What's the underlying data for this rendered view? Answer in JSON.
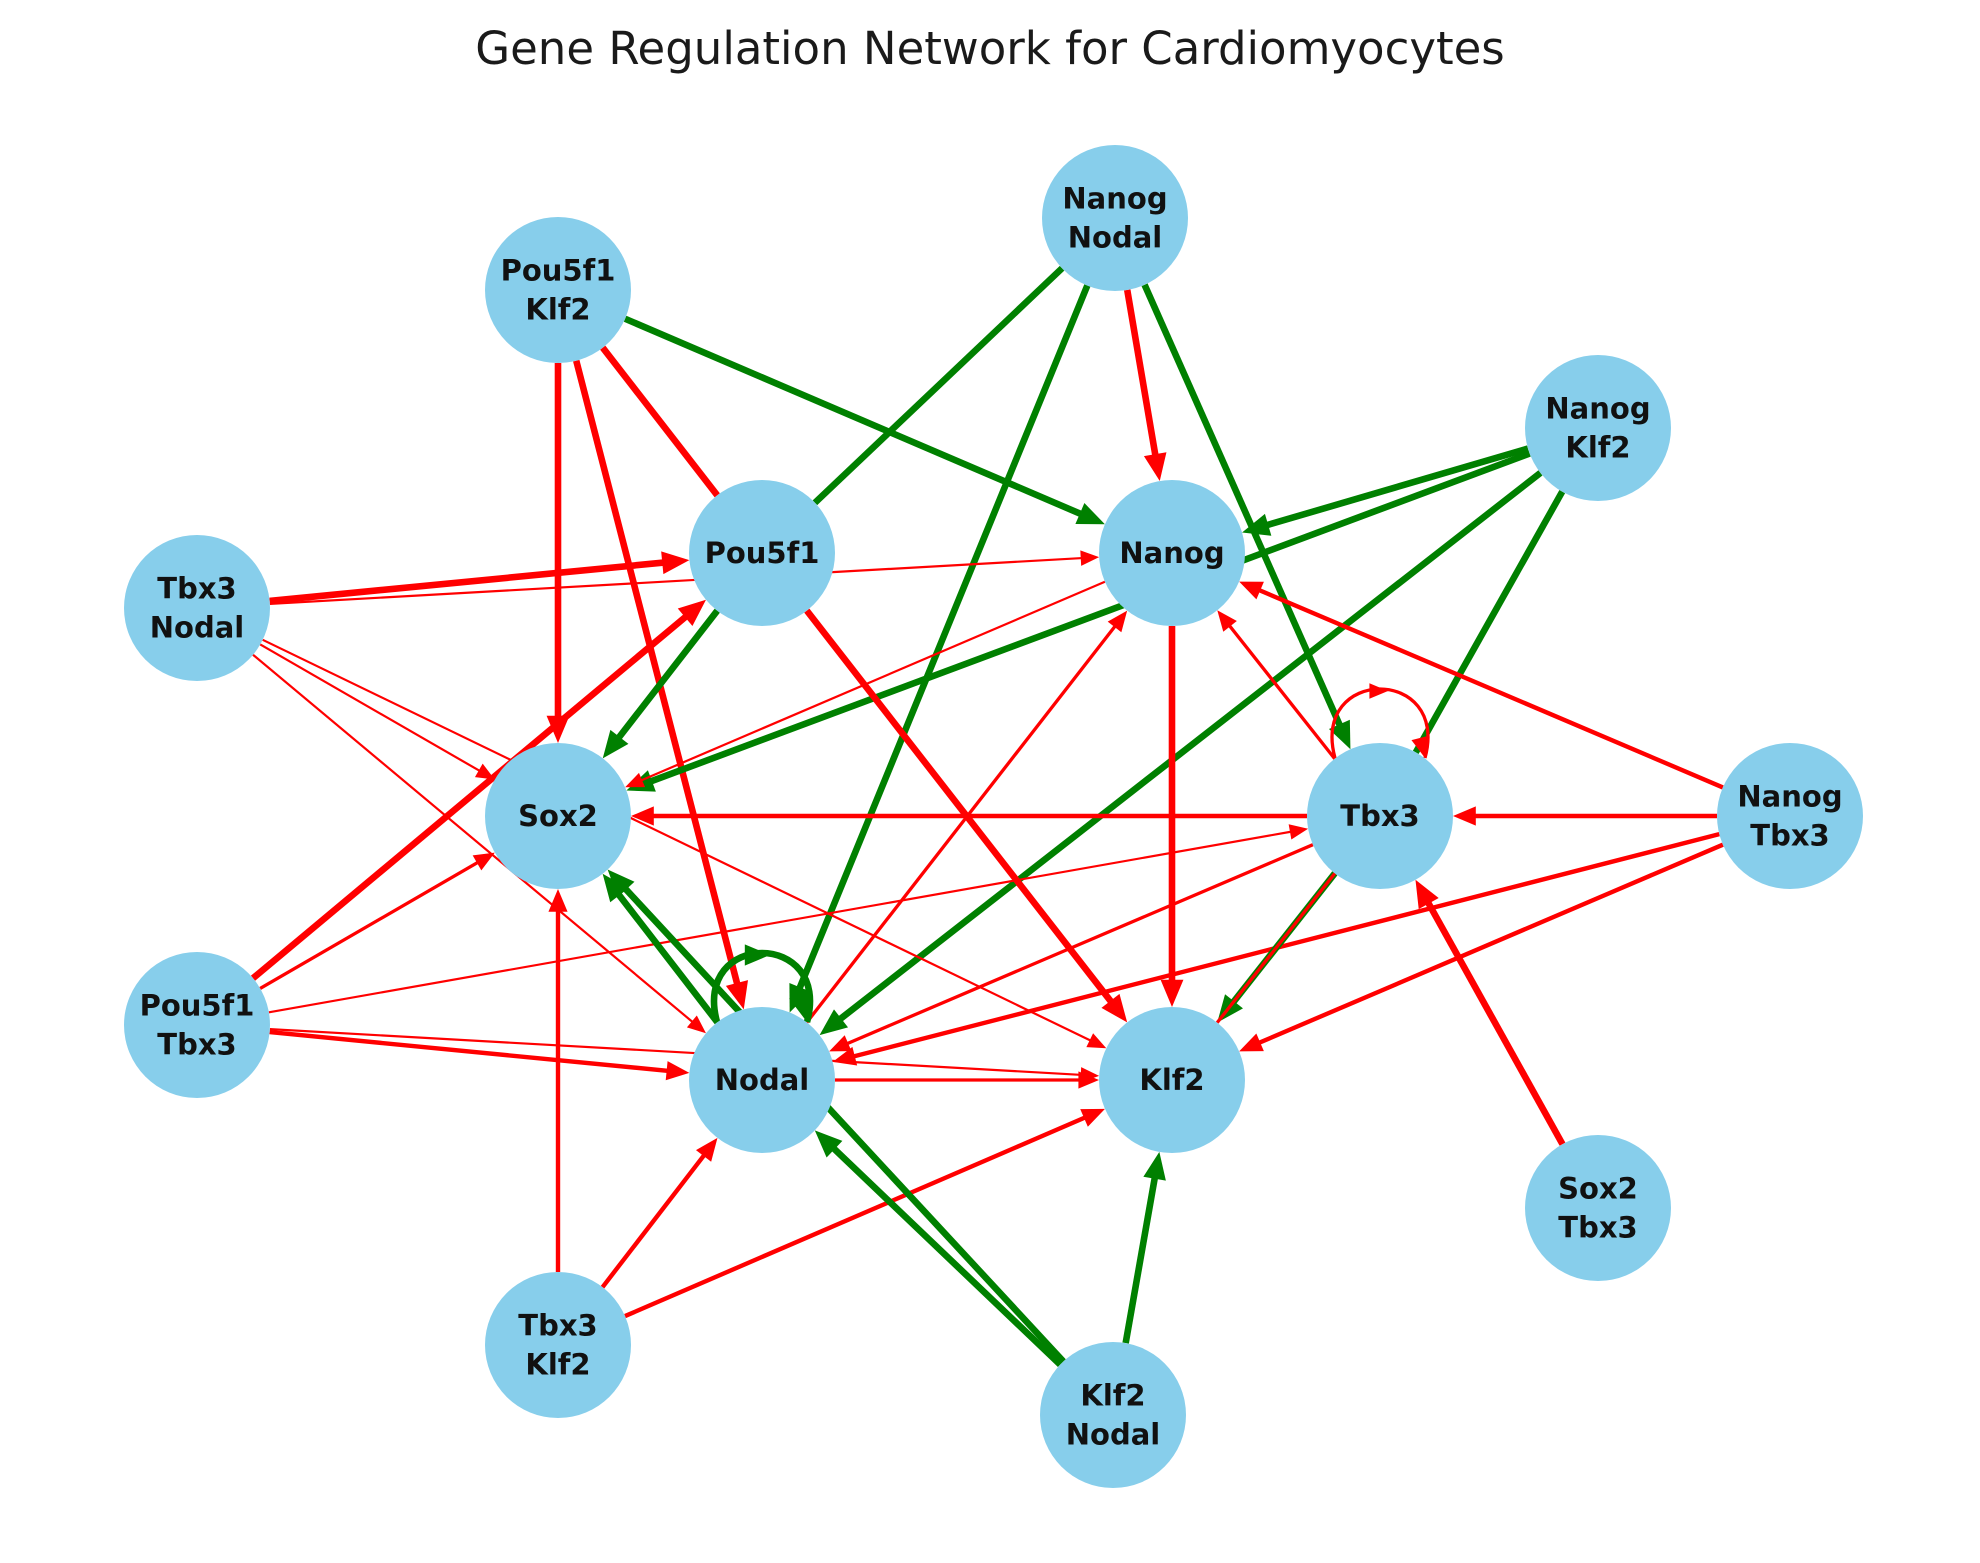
{
  "title": "Gene Regulation Network for Cardiomyocytes",
  "colors": {
    "node_fill": "#87ceeb",
    "activation": "#008000",
    "repression": "#ff0000"
  },
  "nodes": [
    {
      "id": "Pou5f1",
      "label": "Pou5f1"
    },
    {
      "id": "Nanog",
      "label": "Nanog"
    },
    {
      "id": "Sox2",
      "label": "Sox2"
    },
    {
      "id": "Tbx3",
      "label": "Tbx3"
    },
    {
      "id": "Nodal",
      "label": "Nodal"
    },
    {
      "id": "Klf2",
      "label": "Klf2"
    },
    {
      "id": "NanogNodal",
      "label": "Nanog\nNodal"
    },
    {
      "id": "Pou5f1Klf2",
      "label": "Pou5f1\nKlf2"
    },
    {
      "id": "NanogKlf2",
      "label": "Nanog\nKlf2"
    },
    {
      "id": "Tbx3Nodal",
      "label": "Tbx3\nNodal"
    },
    {
      "id": "NanogTbx3",
      "label": "Nanog\nTbx3"
    },
    {
      "id": "Pou5f1Tbx3",
      "label": "Pou5f1\nTbx3"
    },
    {
      "id": "Sox2Tbx3",
      "label": "Sox2\nTbx3"
    },
    {
      "id": "Tbx3Klf2",
      "label": "Tbx3\nKlf2"
    },
    {
      "id": "Klf2Nodal",
      "label": "Klf2\nNodal"
    }
  ],
  "edges": [
    {
      "from": "Pou5f1Klf2",
      "to": "Sox2",
      "type": "repression",
      "weight": 3
    },
    {
      "from": "Pou5f1Klf2",
      "to": "Nodal",
      "type": "repression",
      "weight": 3
    },
    {
      "from": "Pou5f1Klf2",
      "to": "Pou5f1",
      "type": "repression",
      "weight": 3,
      "arrow": false
    },
    {
      "from": "Pou5f1Klf2",
      "to": "Nanog",
      "type": "activation",
      "weight": 3
    },
    {
      "from": "NanogNodal",
      "to": "Pou5f1",
      "type": "activation",
      "weight": 3,
      "arrow": false
    },
    {
      "from": "NanogNodal",
      "to": "Nodal",
      "type": "activation",
      "weight": 3
    },
    {
      "from": "NanogNodal",
      "to": "Nanog",
      "type": "repression",
      "weight": 3
    },
    {
      "from": "NanogNodal",
      "to": "Tbx3",
      "type": "activation",
      "weight": 3
    },
    {
      "from": "NanogKlf2",
      "to": "Nanog",
      "type": "activation",
      "weight": 3
    },
    {
      "from": "NanogKlf2",
      "to": "Sox2",
      "type": "activation",
      "weight": 3
    },
    {
      "from": "NanogKlf2",
      "to": "Nodal",
      "type": "activation",
      "weight": 3
    },
    {
      "from": "NanogKlf2",
      "to": "Tbx3",
      "type": "activation",
      "weight": 3,
      "arrow": false
    },
    {
      "from": "Tbx3Nodal",
      "to": "Pou5f1",
      "type": "repression",
      "weight": 3
    },
    {
      "from": "Tbx3Nodal",
      "to": "Nanog",
      "type": "repression",
      "weight": 1
    },
    {
      "from": "Tbx3Nodal",
      "to": "Sox2",
      "type": "repression",
      "weight": 1
    },
    {
      "from": "Tbx3Nodal",
      "to": "Nodal",
      "type": "repression",
      "weight": 1
    },
    {
      "from": "Tbx3Nodal",
      "to": "Klf2",
      "type": "repression",
      "weight": 1
    },
    {
      "from": "Pou5f1",
      "to": "Sox2",
      "type": "activation",
      "weight": 3
    },
    {
      "from": "Pou5f1",
      "to": "Klf2",
      "type": "repression",
      "weight": 3
    },
    {
      "from": "Nanog",
      "to": "Sox2",
      "type": "repression",
      "weight": 1
    },
    {
      "from": "Nanog",
      "to": "Klf2",
      "type": "repression",
      "weight": 3
    },
    {
      "from": "NanogTbx3",
      "to": "Tbx3",
      "type": "repression",
      "weight": 2
    },
    {
      "from": "NanogTbx3",
      "to": "Nanog",
      "type": "repression",
      "weight": 2
    },
    {
      "from": "NanogTbx3",
      "to": "Nodal",
      "type": "repression",
      "weight": 2
    },
    {
      "from": "NanogTbx3",
      "to": "Klf2",
      "type": "repression",
      "weight": 2
    },
    {
      "from": "Tbx3",
      "to": "Sox2",
      "type": "repression",
      "weight": 2
    },
    {
      "from": "Tbx3",
      "to": "Nanog",
      "type": "repression",
      "weight": 1.5
    },
    {
      "from": "Tbx3",
      "to": "Nodal",
      "type": "repression",
      "weight": 1.5
    },
    {
      "from": "Tbx3",
      "to": "Klf2",
      "type": "activation",
      "weight": 3
    },
    {
      "from": "Tbx3",
      "to": "Klf2",
      "type": "repression",
      "weight": 1.5,
      "arrow": false
    },
    {
      "from": "Pou5f1Tbx3",
      "to": "Pou5f1",
      "type": "repression",
      "weight": 3
    },
    {
      "from": "Pou5f1Tbx3",
      "to": "Sox2",
      "type": "repression",
      "weight": 1.5
    },
    {
      "from": "Pou5f1Tbx3",
      "to": "Tbx3",
      "type": "repression",
      "weight": 1
    },
    {
      "from": "Pou5f1Tbx3",
      "to": "Nodal",
      "type": "repression",
      "weight": 2
    },
    {
      "from": "Pou5f1Tbx3",
      "to": "Klf2",
      "type": "repression",
      "weight": 1
    },
    {
      "from": "Nodal",
      "to": "Sox2",
      "type": "activation",
      "weight": 3
    },
    {
      "from": "Nodal",
      "to": "Nanog",
      "type": "repression",
      "weight": 1.5
    },
    {
      "from": "Nodal",
      "to": "Klf2",
      "type": "repression",
      "weight": 1.5
    },
    {
      "from": "Sox2Tbx3",
      "to": "Tbx3",
      "type": "repression",
      "weight": 3
    },
    {
      "from": "Tbx3Klf2",
      "to": "Sox2",
      "type": "repression",
      "weight": 2
    },
    {
      "from": "Tbx3Klf2",
      "to": "Nodal",
      "type": "repression",
      "weight": 2
    },
    {
      "from": "Tbx3Klf2",
      "to": "Klf2",
      "type": "repression",
      "weight": 2
    },
    {
      "from": "Klf2Nodal",
      "to": "Nodal",
      "type": "activation",
      "weight": 3
    },
    {
      "from": "Klf2Nodal",
      "to": "Sox2",
      "type": "activation",
      "weight": 3
    },
    {
      "from": "Klf2Nodal",
      "to": "Klf2",
      "type": "activation",
      "weight": 3
    },
    {
      "from": "Nodal",
      "to": "Nodal",
      "type": "activation",
      "weight": 3,
      "self_loop": true
    },
    {
      "from": "Tbx3",
      "to": "Tbx3",
      "type": "repression",
      "weight": 1.5,
      "self_loop": true
    }
  ]
}
